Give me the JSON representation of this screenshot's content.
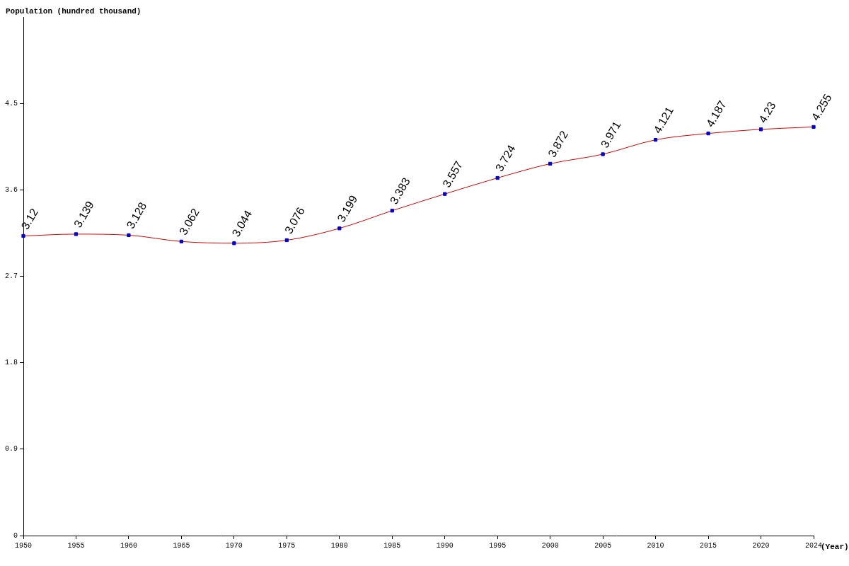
{
  "chart_data": {
    "type": "line",
    "y_label": "Population (hundred thousand)",
    "x_label": "(Year)",
    "categories": [
      "1950",
      "1955",
      "1960",
      "1965",
      "1970",
      "1975",
      "1980",
      "1985",
      "1990",
      "1995",
      "2000",
      "2005",
      "2010",
      "2015",
      "2020",
      "2024"
    ],
    "values": [
      3.12,
      3.139,
      3.128,
      3.062,
      3.044,
      3.076,
      3.199,
      3.383,
      3.557,
      3.724,
      3.872,
      3.971,
      4.121,
      4.187,
      4.23,
      4.255
    ],
    "color": "#dd0000",
    "marker": "square",
    "ylim": [
      0,
      5.4
    ],
    "yticks": [
      0,
      0.9,
      1.8,
      2.7,
      3.6,
      4.5
    ],
    "grid": false,
    "data_labels": true
  }
}
